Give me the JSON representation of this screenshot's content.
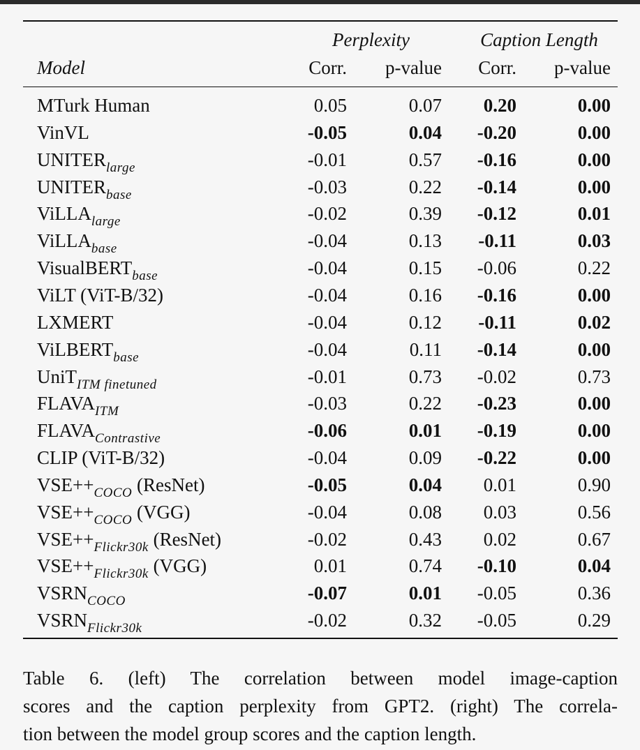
{
  "table": {
    "group_headers": [
      "Perplexity",
      "Caption Length"
    ],
    "columns": [
      "Model",
      "Corr.",
      "p-value",
      "Corr.",
      "p-value"
    ],
    "rows": [
      {
        "model": {
          "base": "MTurk Human"
        },
        "cells": [
          "0.05",
          "0.07",
          "0.20",
          "0.00"
        ],
        "bold": [
          false,
          false,
          true,
          true
        ]
      },
      {
        "model": {
          "base": "VinVL"
        },
        "cells": [
          "-0.05",
          "0.04",
          "-0.20",
          "0.00"
        ],
        "bold": [
          true,
          true,
          true,
          true
        ]
      },
      {
        "model": {
          "base": "UNITER",
          "sub": "large"
        },
        "cells": [
          "-0.01",
          "0.57",
          "-0.16",
          "0.00"
        ],
        "bold": [
          false,
          false,
          true,
          true
        ]
      },
      {
        "model": {
          "base": "UNITER",
          "sub": "base"
        },
        "cells": [
          "-0.03",
          "0.22",
          "-0.14",
          "0.00"
        ],
        "bold": [
          false,
          false,
          true,
          true
        ]
      },
      {
        "model": {
          "base": "ViLLA",
          "sub": "large"
        },
        "cells": [
          "-0.02",
          "0.39",
          "-0.12",
          "0.01"
        ],
        "bold": [
          false,
          false,
          true,
          true
        ]
      },
      {
        "model": {
          "base": "ViLLA",
          "sub": "base"
        },
        "cells": [
          "-0.04",
          "0.13",
          "-0.11",
          "0.03"
        ],
        "bold": [
          false,
          false,
          true,
          true
        ]
      },
      {
        "model": {
          "base": "VisualBERT",
          "sub": "base"
        },
        "cells": [
          "-0.04",
          "0.15",
          "-0.06",
          "0.22"
        ],
        "bold": [
          false,
          false,
          false,
          false
        ]
      },
      {
        "model": {
          "base": "ViLT (ViT-B/32)"
        },
        "cells": [
          "-0.04",
          "0.16",
          "-0.16",
          "0.00"
        ],
        "bold": [
          false,
          false,
          true,
          true
        ]
      },
      {
        "model": {
          "base": "LXMERT"
        },
        "cells": [
          "-0.04",
          "0.12",
          "-0.11",
          "0.02"
        ],
        "bold": [
          false,
          false,
          true,
          true
        ]
      },
      {
        "model": {
          "base": "ViLBERT",
          "sub": "base"
        },
        "cells": [
          "-0.04",
          "0.11",
          "-0.14",
          "0.00"
        ],
        "bold": [
          false,
          false,
          true,
          true
        ]
      },
      {
        "model": {
          "base": "UniT",
          "sub": "ITM finetuned"
        },
        "cells": [
          "-0.01",
          "0.73",
          "-0.02",
          "0.73"
        ],
        "bold": [
          false,
          false,
          false,
          false
        ]
      },
      {
        "model": {
          "base": "FLAVA",
          "sub": "ITM"
        },
        "cells": [
          "-0.03",
          "0.22",
          "-0.23",
          "0.00"
        ],
        "bold": [
          false,
          false,
          true,
          true
        ]
      },
      {
        "model": {
          "base": "FLAVA",
          "sub": "Contrastive"
        },
        "cells": [
          "-0.06",
          "0.01",
          "-0.19",
          "0.00"
        ],
        "bold": [
          true,
          true,
          true,
          true
        ]
      },
      {
        "model": {
          "base": "CLIP (ViT-B/32)"
        },
        "cells": [
          "-0.04",
          "0.09",
          "-0.22",
          "0.00"
        ],
        "bold": [
          false,
          false,
          true,
          true
        ]
      },
      {
        "model": {
          "base": "VSE++",
          "sub": "COCO",
          "suffix": " (ResNet)"
        },
        "cells": [
          "-0.05",
          "0.04",
          "0.01",
          "0.90"
        ],
        "bold": [
          true,
          true,
          false,
          false
        ]
      },
      {
        "model": {
          "base": "VSE++",
          "sub": "COCO",
          "suffix": " (VGG)"
        },
        "cells": [
          "-0.04",
          "0.08",
          "0.03",
          "0.56"
        ],
        "bold": [
          false,
          false,
          false,
          false
        ]
      },
      {
        "model": {
          "base": "VSE++",
          "sub": "Flickr30k",
          "suffix": " (ResNet)"
        },
        "cells": [
          "-0.02",
          "0.43",
          "0.02",
          "0.67"
        ],
        "bold": [
          false,
          false,
          false,
          false
        ]
      },
      {
        "model": {
          "base": "VSE++",
          "sub": "Flickr30k",
          "suffix": " (VGG)"
        },
        "cells": [
          "0.01",
          "0.74",
          "-0.10",
          "0.04"
        ],
        "bold": [
          false,
          false,
          true,
          true
        ]
      },
      {
        "model": {
          "base": "VSRN",
          "sub": "COCO"
        },
        "cells": [
          "-0.07",
          "0.01",
          "-0.05",
          "0.36"
        ],
        "bold": [
          true,
          true,
          false,
          false
        ]
      },
      {
        "model": {
          "base": "VSRN",
          "sub": "Flickr30k"
        },
        "cells": [
          "-0.02",
          "0.32",
          "-0.05",
          "0.29"
        ],
        "bold": [
          false,
          false,
          false,
          false
        ]
      }
    ]
  },
  "caption": {
    "lines": [
      "Table 6.  (left) The correlation between model image-caption",
      "scores and the caption perplexity from GPT2. (right) The correla-",
      "tion between the model group scores and the caption length."
    ]
  }
}
